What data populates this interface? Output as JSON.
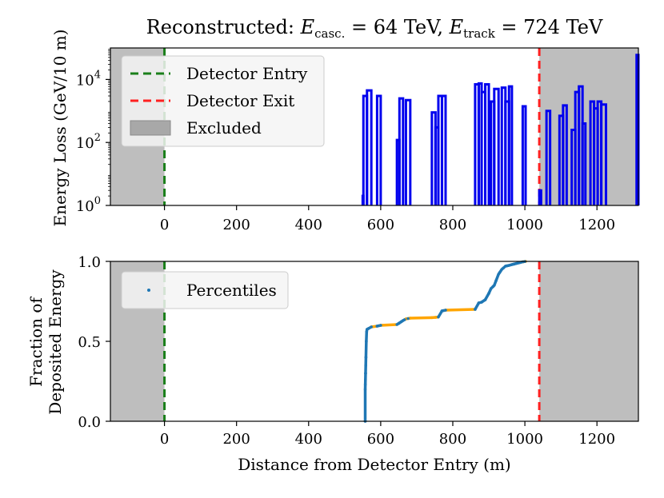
{
  "chart_data": [
    {
      "type": "line",
      "title_prefix": "Reconstructed: ",
      "title_parts": [
        {
          "t": "E",
          "style": "italic"
        },
        {
          "t": "casc.",
          "style": "sub"
        },
        {
          "t": " = 64 TeV, "
        },
        {
          "t": "E",
          "style": "italic"
        },
        {
          "t": "track",
          "style": "sub"
        },
        {
          "t": " = 724 TeV"
        }
      ],
      "title": "Reconstructed: E_casc. = 64 TeV, E_track = 724 TeV",
      "ylabel": "Energy Loss (GeV/10 m)",
      "xlabel": "",
      "xlim": [
        -150,
        1315
      ],
      "yscale": "log",
      "ylim": [
        1,
        100000
      ],
      "xticks": [
        "0",
        "200",
        "400",
        "600",
        "800",
        "1000",
        "1200"
      ],
      "xtick_values": [
        0,
        200,
        400,
        600,
        800,
        1000,
        1200
      ],
      "ytick_values": [
        1,
        100,
        10000
      ],
      "ytick_exponents": [
        "0",
        "2",
        "4"
      ],
      "ytick_base": "10",
      "detector_entry": 0,
      "detector_exit": 1040,
      "excluded_regions": [
        [
          -150,
          0
        ],
        [
          1040,
          1315
        ]
      ],
      "legend": {
        "placement": "top-left",
        "items": [
          "Detector Entry",
          "Detector Exit",
          "Excluded"
        ]
      },
      "series_name": "energy loss",
      "steps": [
        [
          550,
          552,
          2
        ],
        [
          552,
          562,
          3000
        ],
        [
          562,
          574,
          4500
        ],
        [
          590,
          600,
          3000
        ],
        [
          645,
          652,
          120
        ],
        [
          652,
          662,
          2500
        ],
        [
          670,
          682,
          2200
        ],
        [
          742,
          752,
          900
        ],
        [
          752,
          760,
          300
        ],
        [
          760,
          770,
          3000
        ],
        [
          770,
          780,
          3000
        ],
        [
          862,
          872,
          7000
        ],
        [
          872,
          880,
          7500
        ],
        [
          880,
          890,
          4000
        ],
        [
          890,
          900,
          7000
        ],
        [
          906,
          915,
          2000
        ],
        [
          915,
          927,
          5000
        ],
        [
          936,
          946,
          5500
        ],
        [
          946,
          956,
          2000
        ],
        [
          956,
          964,
          6000
        ],
        [
          994,
          1002,
          1400
        ],
        [
          1040,
          1045,
          3
        ],
        [
          1060,
          1070,
          1000
        ],
        [
          1096,
          1106,
          700
        ],
        [
          1106,
          1116,
          1500
        ],
        [
          1130,
          1140,
          250
        ],
        [
          1140,
          1150,
          4000
        ],
        [
          1150,
          1160,
          6000
        ],
        [
          1160,
          1168,
          400
        ],
        [
          1182,
          1192,
          2000
        ],
        [
          1192,
          1202,
          1200
        ],
        [
          1202,
          1212,
          2000
        ],
        [
          1212,
          1225,
          1600
        ],
        [
          1310,
          1315,
          60000
        ]
      ]
    },
    {
      "type": "line",
      "title": "",
      "ylabel": "Fraction of Deposited Energy",
      "ylabel_lines": [
        "Fraction of",
        "Deposited Energy"
      ],
      "xlabel": "Distance from Detector Entry (m)",
      "xlim": [
        -150,
        1315
      ],
      "ylim": [
        0,
        1
      ],
      "xticks": [
        "0",
        "200",
        "400",
        "600",
        "800",
        "1000",
        "1200"
      ],
      "xtick_values": [
        0,
        200,
        400,
        600,
        800,
        1000,
        1200
      ],
      "yticks": [
        "0.0",
        "0.5",
        "1.0"
      ],
      "ytick_values": [
        0,
        0.5,
        1.0
      ],
      "detector_entry": 0,
      "detector_exit": 1040,
      "excluded_regions": [
        [
          -150,
          0
        ],
        [
          1040,
          1315
        ]
      ],
      "legend": {
        "placement": "top-left",
        "items": [
          "Percentiles"
        ]
      },
      "series": [
        {
          "name": "cumulative",
          "x": [
            557,
            557,
            558,
            559,
            560,
            561,
            562,
            574,
            590,
            600,
            645,
            652,
            662,
            670,
            682,
            742,
            752,
            760,
            770,
            780,
            862,
            872,
            880,
            890,
            900,
            906,
            915,
            927,
            936,
            946,
            956,
            964,
            994,
            1002
          ],
          "y": [
            0.0,
            0.2,
            0.3,
            0.4,
            0.5,
            0.56,
            0.575,
            0.59,
            0.595,
            0.6,
            0.605,
            0.615,
            0.63,
            0.64,
            0.645,
            0.648,
            0.65,
            0.652,
            0.69,
            0.695,
            0.7,
            0.74,
            0.745,
            0.76,
            0.8,
            0.83,
            0.85,
            0.92,
            0.95,
            0.97,
            0.975,
            0.98,
            0.997,
            1.0
          ]
        }
      ],
      "percentiles_x": [
        557,
        557.3,
        557.6,
        558,
        558.5,
        559,
        560,
        561,
        566,
        574,
        590,
        600,
        650,
        657,
        666,
        676,
        770,
        780,
        862,
        872,
        880,
        890,
        900,
        912,
        920,
        930,
        940,
        950,
        960,
        970,
        975,
        980,
        985,
        990,
        995,
        1000
      ]
    }
  ]
}
